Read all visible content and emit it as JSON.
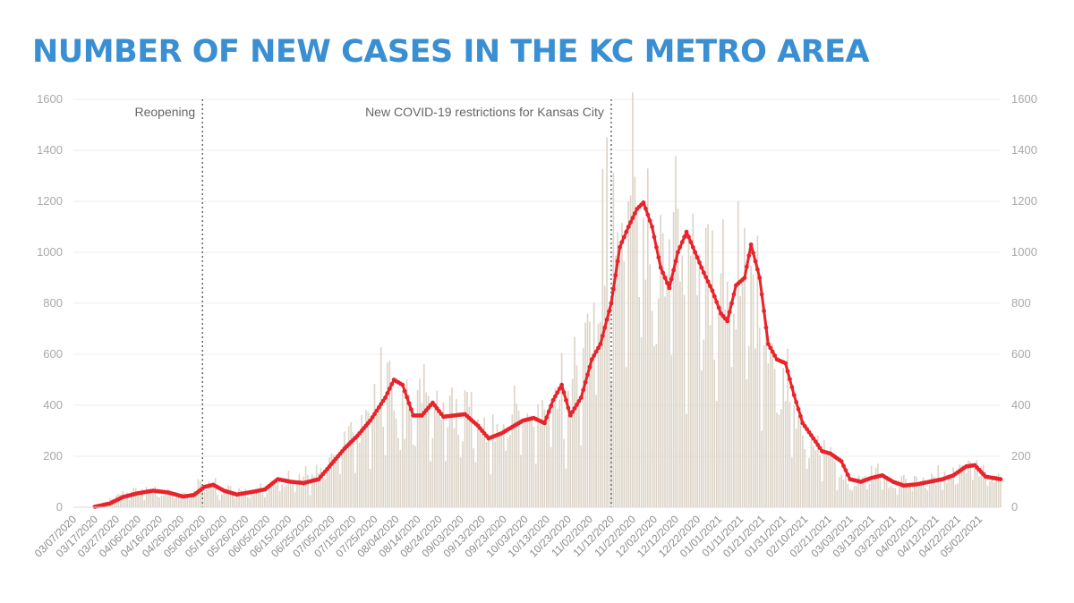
{
  "title": "NUMBER OF NEW CASES IN THE KC METRO AREA",
  "colors": {
    "title": "#3a8fd3",
    "bars": "#ddd5c9",
    "line": "#e8232b",
    "grid": "#ececec",
    "annotation_line": "#666666"
  },
  "chart_data": {
    "type": "bar",
    "ylim": [
      0,
      1600
    ],
    "y_ticks": [
      0,
      200,
      400,
      600,
      800,
      1000,
      1200,
      1400,
      1600
    ],
    "x_start": "03/07/2020",
    "x_end": "05/12/2021",
    "x_tick_labels": [
      "03/07/2020",
      "03/17/2020",
      "03/27/2020",
      "04/06/2020",
      "04/16/2020",
      "04/26/2020",
      "05/06/2020",
      "05/16/2020",
      "05/26/2020",
      "06/05/2020",
      "06/15/2020",
      "06/25/2020",
      "07/05/2020",
      "07/15/2020",
      "07/25/2020",
      "08/04/2020",
      "08/14/2020",
      "08/24/2020",
      "09/03/2020",
      "09/13/2020",
      "09/23/2020",
      "10/03/2020",
      "10/13/2020",
      "10/23/2020",
      "11/02/2020",
      "11/12/2020",
      "11/22/2020",
      "12/02/2020",
      "12/12/2020",
      "12/22/2020",
      "01/01/2021",
      "01/11/2021",
      "01/21/2021",
      "01/31/2021",
      "02/10/2021",
      "02/21/2021",
      "03/03/2021",
      "03/13/2021",
      "03/23/2021",
      "04/02/2021",
      "04/12/2021",
      "04/22/2021",
      "05/02/2021"
    ],
    "series": [
      {
        "kind": "bar",
        "description": "daily new cases (keypoints, interpolated)",
        "points": [
          [
            "03/07/2020",
            0
          ],
          [
            "03/15/2020",
            2
          ],
          [
            "03/22/2020",
            15
          ],
          [
            "03/29/2020",
            45
          ],
          [
            "04/06/2020",
            60
          ],
          [
            "04/13/2020",
            70
          ],
          [
            "04/20/2020",
            55
          ],
          [
            "04/27/2020",
            45
          ],
          [
            "05/04/2020",
            80
          ],
          [
            "05/08/2020",
            95
          ],
          [
            "05/15/2020",
            60
          ],
          [
            "05/25/2020",
            55
          ],
          [
            "06/05/2020",
            70
          ],
          [
            "06/12/2020",
            110
          ],
          [
            "06/20/2020",
            100
          ],
          [
            "06/28/2020",
            120
          ],
          [
            "07/05/2020",
            200
          ],
          [
            "07/12/2020",
            270
          ],
          [
            "07/19/2020",
            290
          ],
          [
            "07/25/2020",
            360
          ],
          [
            "07/31/2020",
            500
          ],
          [
            "08/05/2020",
            380
          ],
          [
            "08/10/2020",
            350
          ],
          [
            "08/16/2020",
            410
          ],
          [
            "08/22/2020",
            350
          ],
          [
            "08/28/2020",
            370
          ],
          [
            "09/04/2020",
            360
          ],
          [
            "09/10/2020",
            270
          ],
          [
            "09/16/2020",
            290
          ],
          [
            "09/24/2020",
            320
          ],
          [
            "10/02/2020",
            340
          ],
          [
            "10/10/2020",
            330
          ],
          [
            "10/17/2020",
            420
          ],
          [
            "10/22/2020",
            370
          ],
          [
            "10/28/2020",
            500
          ],
          [
            "11/03/2020",
            650
          ],
          [
            "11/09/2020",
            1000
          ],
          [
            "11/14/2020",
            1100
          ],
          [
            "11/20/2020",
            1200
          ],
          [
            "11/26/2020",
            1050
          ],
          [
            "12/01/2020",
            900
          ],
          [
            "12/06/2020",
            1000
          ],
          [
            "12/11/2020",
            1080
          ],
          [
            "12/17/2020",
            950
          ],
          [
            "12/23/2020",
            850
          ],
          [
            "12/29/2020",
            760
          ],
          [
            "01/03/2021",
            850
          ],
          [
            "01/08/2021",
            900
          ],
          [
            "01/12/2021",
            1030
          ],
          [
            "01/17/2021",
            800
          ],
          [
            "01/22/2021",
            580
          ],
          [
            "01/27/2021",
            570
          ],
          [
            "02/01/2021",
            420
          ],
          [
            "02/06/2021",
            320
          ],
          [
            "02/12/2021",
            220
          ],
          [
            "02/18/2021",
            210
          ],
          [
            "02/24/2021",
            180
          ],
          [
            "03/01/2021",
            110
          ],
          [
            "03/07/2021",
            100
          ],
          [
            "03/14/2021",
            130
          ],
          [
            "03/20/2021",
            90
          ],
          [
            "03/28/2021",
            90
          ],
          [
            "04/05/2021",
            100
          ],
          [
            "04/13/2021",
            110
          ],
          [
            "04/21/2021",
            130
          ],
          [
            "04/28/2021",
            165
          ],
          [
            "05/04/2021",
            130
          ],
          [
            "05/12/2021",
            110
          ]
        ]
      },
      {
        "kind": "line",
        "description": "7-day rolling average (keypoints, interpolated)",
        "points": [
          [
            "03/17/2020",
            2
          ],
          [
            "03/24/2020",
            15
          ],
          [
            "03/30/2020",
            40
          ],
          [
            "04/06/2020",
            55
          ],
          [
            "04/13/2020",
            65
          ],
          [
            "04/20/2020",
            58
          ],
          [
            "04/27/2020",
            42
          ],
          [
            "05/02/2020",
            48
          ],
          [
            "05/07/2020",
            80
          ],
          [
            "05/11/2020",
            88
          ],
          [
            "05/16/2020",
            65
          ],
          [
            "05/22/2020",
            50
          ],
          [
            "05/29/2020",
            60
          ],
          [
            "06/04/2020",
            70
          ],
          [
            "06/10/2020",
            110
          ],
          [
            "06/16/2020",
            100
          ],
          [
            "06/22/2020",
            95
          ],
          [
            "06/29/2020",
            110
          ],
          [
            "07/05/2020",
            170
          ],
          [
            "07/11/2020",
            230
          ],
          [
            "07/17/2020",
            280
          ],
          [
            "07/23/2020",
            340
          ],
          [
            "07/30/2020",
            430
          ],
          [
            "08/03/2020",
            500
          ],
          [
            "08/07/2020",
            480
          ],
          [
            "08/12/2020",
            360
          ],
          [
            "08/16/2020",
            360
          ],
          [
            "08/21/2020",
            410
          ],
          [
            "08/26/2020",
            355
          ],
          [
            "08/31/2020",
            360
          ],
          [
            "09/05/2020",
            365
          ],
          [
            "09/11/2020",
            320
          ],
          [
            "09/16/2020",
            270
          ],
          [
            "09/22/2020",
            290
          ],
          [
            "09/28/2020",
            320
          ],
          [
            "10/02/2020",
            340
          ],
          [
            "10/07/2020",
            350
          ],
          [
            "10/12/2020",
            330
          ],
          [
            "10/16/2020",
            420
          ],
          [
            "10/20/2020",
            480
          ],
          [
            "10/24/2020",
            360
          ],
          [
            "10/29/2020",
            430
          ],
          [
            "11/03/2020",
            580
          ],
          [
            "11/07/2020",
            640
          ],
          [
            "11/12/2020",
            800
          ],
          [
            "11/16/2020",
            1020
          ],
          [
            "11/20/2020",
            1100
          ],
          [
            "11/24/2020",
            1170
          ],
          [
            "11/27/2020",
            1195
          ],
          [
            "12/01/2020",
            1100
          ],
          [
            "12/05/2020",
            940
          ],
          [
            "12/09/2020",
            860
          ],
          [
            "12/13/2020",
            1000
          ],
          [
            "12/17/2020",
            1080
          ],
          [
            "12/21/2020",
            1000
          ],
          [
            "12/25/2020",
            920
          ],
          [
            "12/29/2020",
            850
          ],
          [
            "01/02/2021",
            760
          ],
          [
            "01/05/2021",
            730
          ],
          [
            "01/09/2021",
            870
          ],
          [
            "01/13/2021",
            900
          ],
          [
            "01/16/2021",
            1030
          ],
          [
            "01/20/2021",
            900
          ],
          [
            "01/24/2021",
            640
          ],
          [
            "01/28/2021",
            580
          ],
          [
            "02/01/2021",
            565
          ],
          [
            "02/05/2021",
            440
          ],
          [
            "02/09/2021",
            330
          ],
          [
            "02/14/2021",
            270
          ],
          [
            "02/18/2021",
            220
          ],
          [
            "02/22/2021",
            210
          ],
          [
            "02/27/2021",
            180
          ],
          [
            "03/03/2021",
            110
          ],
          [
            "03/08/2021",
            100
          ],
          [
            "03/13/2021",
            115
          ],
          [
            "03/18/2021",
            125
          ],
          [
            "03/23/2021",
            100
          ],
          [
            "03/28/2021",
            85
          ],
          [
            "04/03/2021",
            90
          ],
          [
            "04/09/2021",
            100
          ],
          [
            "04/15/2021",
            110
          ],
          [
            "04/20/2021",
            125
          ],
          [
            "04/26/2021",
            160
          ],
          [
            "04/30/2021",
            165
          ],
          [
            "05/05/2021",
            120
          ],
          [
            "05/12/2021",
            110
          ]
        ]
      }
    ],
    "annotations": [
      {
        "date": "05/06/2020",
        "label": "Reopening",
        "side": "left"
      },
      {
        "date": "11/12/2020",
        "label": "New COVID-19 restrictions for Kansas City",
        "side": "left"
      }
    ],
    "grid": true
  }
}
